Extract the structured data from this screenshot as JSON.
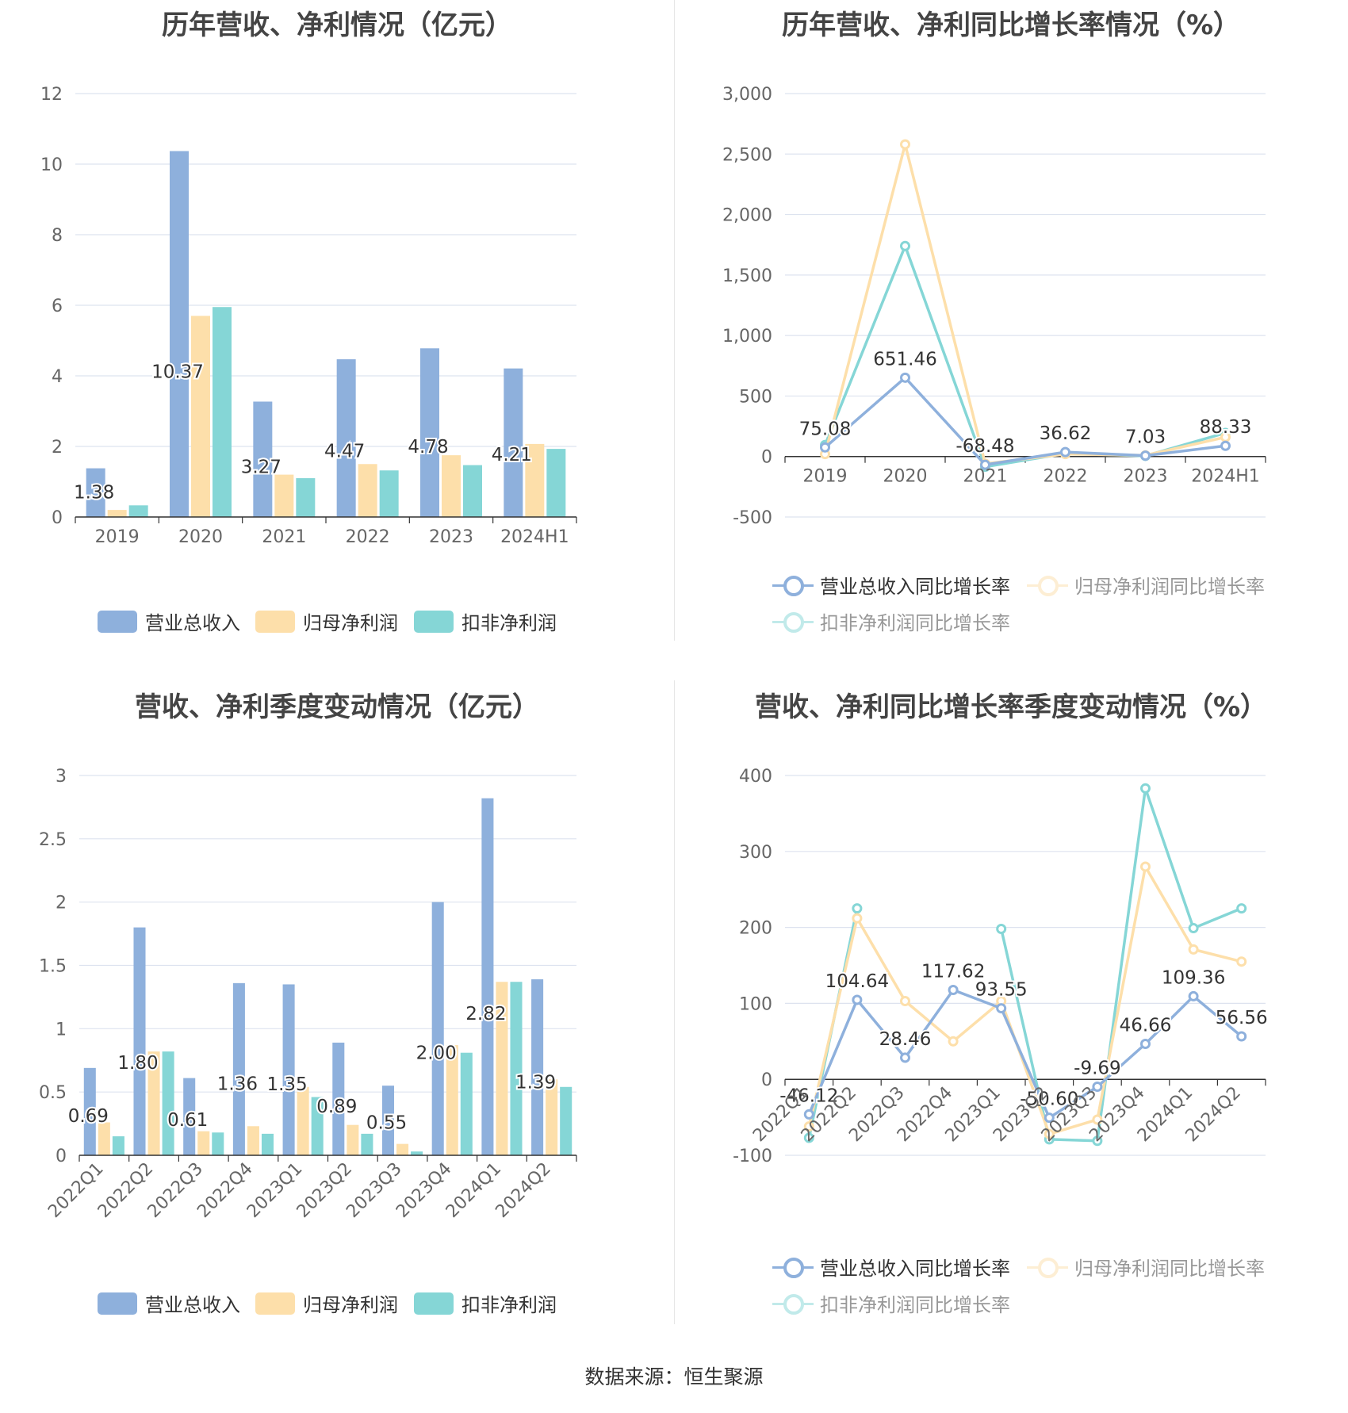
{
  "source_text": "数据来源：恒生聚源",
  "colors": {
    "revenue": "#8eb0dc",
    "net_profit": "#fddfaa",
    "deducted_profit": "#85d6d6",
    "grid": "#dde3ef",
    "axis": "#333333",
    "tick_text": "#666666"
  },
  "panels": {
    "p1": {
      "title": "历年营收、净利情况（亿元）"
    },
    "p2": {
      "title": "历年营收、净利同比增长率情况（%）"
    },
    "p3": {
      "title": "营收、净利季度变动情况（亿元）"
    },
    "p4": {
      "title": "营收、净利同比增长率季度变动情况（%）"
    }
  },
  "legends": {
    "bars": [
      "营业总收入",
      "归母净利润",
      "扣非净利润"
    ],
    "lines": [
      "营业总收入同比增长率",
      "归母净利润同比增长率",
      "扣非净利润同比增长率"
    ]
  },
  "chart_data": [
    {
      "id": "p1",
      "type": "bar",
      "title": "历年营收、净利情况（亿元）",
      "categories": [
        "2019",
        "2020",
        "2021",
        "2022",
        "2023",
        "2024H1"
      ],
      "ylim": [
        0,
        12
      ],
      "yticks": [
        "0",
        "2",
        "4",
        "6",
        "8",
        "10",
        "12"
      ],
      "grid": true,
      "legend": "bottom",
      "series": [
        {
          "name": "营业总收入",
          "values": [
            1.38,
            10.37,
            3.27,
            4.47,
            4.78,
            4.21
          ],
          "labels": [
            "1.38",
            "10.37",
            "3.27",
            "4.47",
            "4.78",
            "4.21"
          ]
        },
        {
          "name": "归母净利润",
          "values": [
            0.2,
            5.7,
            1.2,
            1.5,
            1.75,
            2.07
          ]
        },
        {
          "name": "扣非净利润",
          "values": [
            0.33,
            5.95,
            1.1,
            1.32,
            1.47,
            1.93
          ]
        }
      ]
    },
    {
      "id": "p2",
      "type": "line",
      "title": "历年营收、净利同比增长率情况（%）",
      "categories": [
        "2019",
        "2020",
        "2021",
        "2022",
        "2023",
        "2024H1"
      ],
      "ylim": [
        -500,
        3000
      ],
      "yticks": [
        "-500",
        "0",
        "500",
        "1,000",
        "1,500",
        "2,000",
        "2,500",
        "3,000"
      ],
      "grid": true,
      "legend": "bottom",
      "series": [
        {
          "name": "营业总收入同比增长率",
          "values": [
            75.08,
            651.46,
            -68.48,
            36.62,
            7.03,
            88.33
          ],
          "labels": [
            "75.08",
            "651.46",
            "-68.48",
            "36.62",
            "7.03",
            "88.33"
          ]
        },
        {
          "name": "归母净利润同比增长率",
          "values": [
            20,
            2580,
            -60,
            20,
            10,
            160
          ]
        },
        {
          "name": "扣非净利润同比增长率",
          "values": [
            95,
            1740,
            -85,
            25,
            5,
            195
          ]
        }
      ]
    },
    {
      "id": "p3",
      "type": "bar",
      "title": "营收、净利季度变动情况（亿元）",
      "categories": [
        "2022Q1",
        "2022Q2",
        "2022Q3",
        "2022Q4",
        "2023Q1",
        "2023Q2",
        "2023Q3",
        "2023Q4",
        "2024Q1",
        "2024Q2"
      ],
      "ylim": [
        0,
        3
      ],
      "yticks": [
        "0",
        "0.5",
        "1",
        "1.5",
        "2",
        "2.5",
        "3"
      ],
      "grid": true,
      "legend": "bottom",
      "series": [
        {
          "name": "营业总收入",
          "values": [
            0.69,
            1.8,
            0.61,
            1.36,
            1.35,
            0.89,
            0.55,
            2.0,
            2.82,
            1.39
          ],
          "labels": [
            "0.69",
            "1.80",
            "0.61",
            "1.36",
            "1.35",
            "0.89",
            "0.55",
            "2.00",
            "2.82",
            "1.39"
          ]
        },
        {
          "name": "归母净利润",
          "values": [
            0.26,
            0.82,
            0.19,
            0.23,
            0.54,
            0.24,
            0.09,
            0.87,
            1.37,
            0.6
          ]
        },
        {
          "name": "扣非净利润",
          "values": [
            0.15,
            0.82,
            0.18,
            0.17,
            0.46,
            0.17,
            0.03,
            0.81,
            1.37,
            0.54
          ]
        }
      ]
    },
    {
      "id": "p4",
      "type": "line",
      "title": "营收、净利同比增长率季度变动情况（%）",
      "categories": [
        "2022Q1",
        "2022Q2",
        "2022Q3",
        "2022Q4",
        "2023Q1",
        "2023Q2",
        "2023Q3",
        "2023Q4",
        "2024Q1",
        "2024Q2"
      ],
      "ylim": [
        -100,
        400
      ],
      "yticks": [
        "-100",
        "0",
        "100",
        "200",
        "300",
        "400"
      ],
      "grid": true,
      "legend": "bottom",
      "series": [
        {
          "name": "营业总收入同比增长率",
          "values": [
            -46.12,
            104.64,
            28.46,
            117.62,
            93.55,
            -50.6,
            -9.69,
            46.66,
            109.36,
            56.56
          ],
          "labels": [
            "-46.12",
            "104.64",
            "28.46",
            "117.62",
            "93.55",
            "-50.60",
            "-9.69",
            "46.66",
            "109.36",
            "56.56"
          ]
        },
        {
          "name": "归母净利润同比增长率",
          "values": [
            -62,
            212,
            103,
            50,
            103,
            -72,
            -53,
            280,
            171,
            155
          ]
        },
        {
          "name": "扣非净利润同比增长率",
          "values": [
            -77,
            225,
            null,
            null,
            198,
            -79,
            -81,
            383,
            199,
            225
          ]
        }
      ]
    }
  ]
}
